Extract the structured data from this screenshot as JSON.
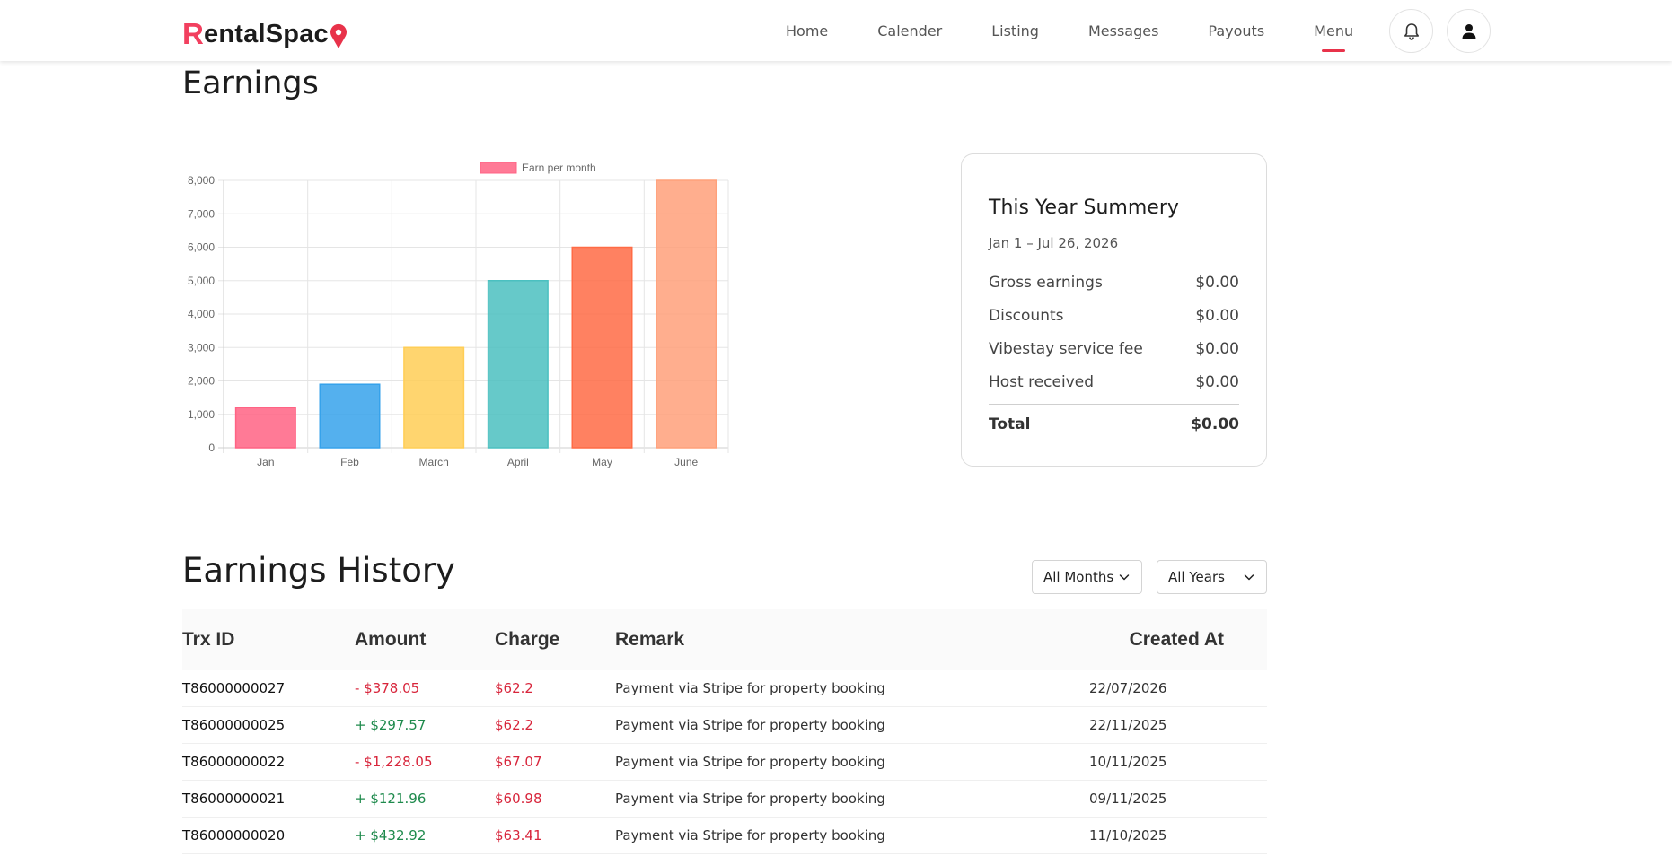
{
  "header": {
    "logo_first": "R",
    "logo_rest": "entalSpac",
    "logo_last": "e",
    "nav": [
      {
        "label": "Home",
        "active": false
      },
      {
        "label": "Calender",
        "active": false
      },
      {
        "label": "Listing",
        "active": false
      },
      {
        "label": "Messages",
        "active": false
      },
      {
        "label": "Payouts",
        "active": false
      },
      {
        "label": "Menu",
        "active": true
      }
    ],
    "notification_icon": "bell-icon",
    "profile_icon": "user-icon",
    "accent_color": "#e8324a"
  },
  "page": {
    "title": "Earnings",
    "history_title": "Earnings History"
  },
  "chart_data": {
    "type": "bar",
    "categories": [
      "Jan",
      "Feb",
      "March",
      "April",
      "May",
      "June"
    ],
    "series": [
      {
        "name": "Earn per month",
        "values": [
          1200,
          1900,
          3000,
          5000,
          6000,
          8000
        ]
      }
    ],
    "colors": [
      "#ff6384",
      "#36a2eb",
      "#ffce56",
      "#4bc0c0",
      "#ff6b45",
      "#ffa07a"
    ],
    "y_ticks": [
      "0",
      "1,000",
      "2,000",
      "3,000",
      "4,000",
      "5,000",
      "6,000",
      "7,000",
      "8,000"
    ],
    "ylim": [
      0,
      8000
    ],
    "grid": true,
    "legend_position": "top"
  },
  "summary": {
    "title": "This Year Summery",
    "range": "Jan 1 – Jul 26, 2026",
    "rows": [
      {
        "label": "Gross earnings",
        "value": "$0.00"
      },
      {
        "label": "Discounts",
        "value": "$0.00"
      },
      {
        "label": "Vibestay service fee",
        "value": "$0.00"
      },
      {
        "label": "Host received",
        "value": "$0.00"
      }
    ],
    "total_label": "Total",
    "total_value": "$0.00"
  },
  "filters": {
    "month": "All Months",
    "year": "All Years"
  },
  "table": {
    "columns": [
      "Trx ID",
      "Amount",
      "Charge",
      "Remark",
      "Created At"
    ],
    "rows": [
      {
        "id": "T86000000027",
        "amount": "- $378.05",
        "sign": "neg",
        "charge": "$62.2",
        "remark": "Payment via Stripe for property booking",
        "created": "22/07/2026"
      },
      {
        "id": "T86000000025",
        "amount": "+ $297.57",
        "sign": "pos",
        "charge": "$62.2",
        "remark": "Payment via Stripe for property booking",
        "created": "22/11/2025"
      },
      {
        "id": "T86000000022",
        "amount": "- $1,228.05",
        "sign": "neg",
        "charge": "$67.07",
        "remark": "Payment via Stripe for property booking",
        "created": "10/11/2025"
      },
      {
        "id": "T86000000021",
        "amount": "+ $121.96",
        "sign": "pos",
        "charge": "$60.98",
        "remark": "Payment via Stripe for property booking",
        "created": "09/11/2025"
      },
      {
        "id": "T86000000020",
        "amount": "+ $432.92",
        "sign": "pos",
        "charge": "$63.41",
        "remark": "Payment via Stripe for property booking",
        "created": "11/10/2025"
      }
    ]
  }
}
